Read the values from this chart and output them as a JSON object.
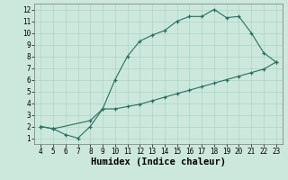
{
  "line1_x": [
    4,
    5,
    6,
    7,
    8,
    9,
    10,
    11,
    12,
    13,
    14,
    15,
    16,
    17,
    18,
    19,
    20,
    21,
    22,
    23
  ],
  "line1_y": [
    2.0,
    1.8,
    1.3,
    1.0,
    2.0,
    3.5,
    6.0,
    8.0,
    9.3,
    9.8,
    10.2,
    11.0,
    11.4,
    11.4,
    12.0,
    11.3,
    11.4,
    10.0,
    8.3,
    7.5
  ],
  "line2_x": [
    4,
    5,
    8,
    9,
    10,
    11,
    12,
    13,
    14,
    15,
    16,
    17,
    18,
    19,
    20,
    21,
    22,
    23
  ],
  "line2_y": [
    2.0,
    1.8,
    2.5,
    3.5,
    3.5,
    3.7,
    3.9,
    4.2,
    4.5,
    4.8,
    5.1,
    5.4,
    5.7,
    6.0,
    6.3,
    6.6,
    6.9,
    7.5
  ],
  "color": "#2a6e62",
  "bg_color": "#cce8dc",
  "grid_major_color": "#aad4c4",
  "grid_minor_color": "#bbddd0",
  "xlabel": "Humidex (Indice chaleur)",
  "xlim": [
    3.5,
    23.5
  ],
  "ylim": [
    0.5,
    12.5
  ],
  "xticks": [
    4,
    5,
    6,
    7,
    8,
    9,
    10,
    11,
    12,
    13,
    14,
    15,
    16,
    17,
    18,
    19,
    20,
    21,
    22,
    23
  ],
  "yticks": [
    1,
    2,
    3,
    4,
    5,
    6,
    7,
    8,
    9,
    10,
    11,
    12
  ],
  "tick_fontsize": 5.5,
  "xlabel_fontsize": 7.5
}
